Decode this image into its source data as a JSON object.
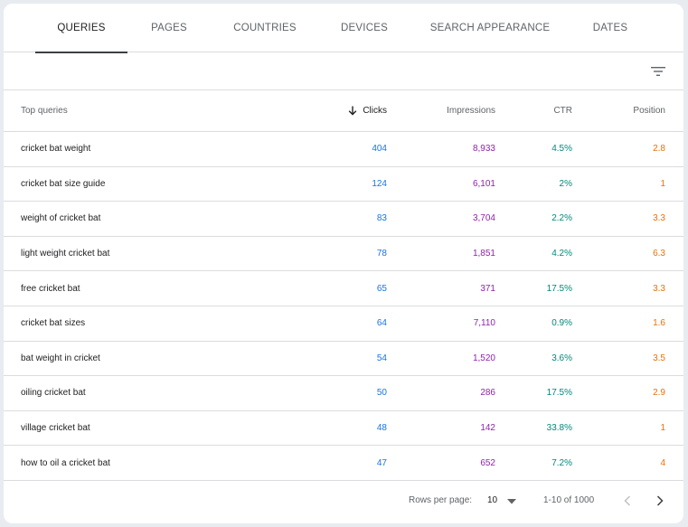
{
  "tabs": [
    {
      "label": "QUERIES",
      "active": true
    },
    {
      "label": "PAGES",
      "active": false
    },
    {
      "label": "COUNTRIES",
      "active": false
    },
    {
      "label": "DEVICES",
      "active": false
    },
    {
      "label": "SEARCH APPEARANCE",
      "active": false
    },
    {
      "label": "DATES",
      "active": false
    }
  ],
  "toolbar": {
    "filter_icon": "filter-icon"
  },
  "table": {
    "headers": {
      "query": "Top queries",
      "clicks": "Clicks",
      "impressions": "Impressions",
      "ctr": "CTR",
      "position": "Position"
    },
    "sort": {
      "column": "clicks",
      "direction": "descending",
      "icon": "arrow-down-icon"
    },
    "rows": [
      {
        "query": "cricket bat weight",
        "clicks": "404",
        "impressions": "8,933",
        "ctr": "4.5%",
        "position": "2.8"
      },
      {
        "query": "cricket bat size guide",
        "clicks": "124",
        "impressions": "6,101",
        "ctr": "2%",
        "position": "1"
      },
      {
        "query": "weight of cricket bat",
        "clicks": "83",
        "impressions": "3,704",
        "ctr": "2.2%",
        "position": "3.3"
      },
      {
        "query": "light weight cricket bat",
        "clicks": "78",
        "impressions": "1,851",
        "ctr": "4.2%",
        "position": "6.3"
      },
      {
        "query": "free cricket bat",
        "clicks": "65",
        "impressions": "371",
        "ctr": "17.5%",
        "position": "3.3"
      },
      {
        "query": "cricket bat sizes",
        "clicks": "64",
        "impressions": "7,110",
        "ctr": "0.9%",
        "position": "1.6"
      },
      {
        "query": "bat weight in cricket",
        "clicks": "54",
        "impressions": "1,520",
        "ctr": "3.6%",
        "position": "3.5"
      },
      {
        "query": "oiling cricket bat",
        "clicks": "50",
        "impressions": "286",
        "ctr": "17.5%",
        "position": "2.9"
      },
      {
        "query": "village cricket bat",
        "clicks": "48",
        "impressions": "142",
        "ctr": "33.8%",
        "position": "1"
      },
      {
        "query": "how to oil a cricket bat",
        "clicks": "47",
        "impressions": "652",
        "ctr": "7.2%",
        "position": "4"
      }
    ]
  },
  "footer": {
    "rows_per_page_label": "Rows per page:",
    "rows_per_page_value": "10",
    "range": "1-10 of 1000"
  },
  "colors": {
    "clicks": "#1a73e8",
    "impressions": "#8e24aa",
    "ctr": "#00897b",
    "position": "#e8710a"
  }
}
